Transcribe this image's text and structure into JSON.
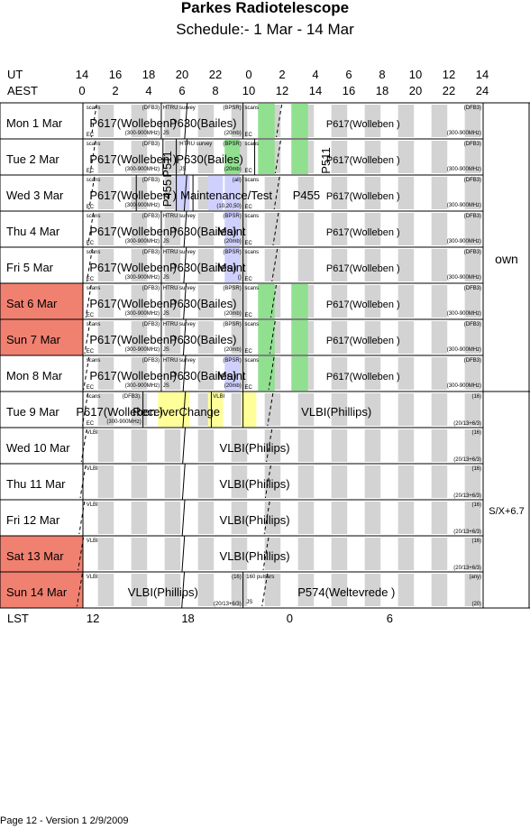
{
  "title": "Parkes Radiotelescope",
  "subtitle": "Schedule:- 1  Mar - 14 Mar",
  "axis": {
    "ut_label": "UT",
    "aest_label": "AEST",
    "lst_label": "LST",
    "ut_ticks": [
      "14",
      "16",
      "18",
      "20",
      "22",
      "0",
      "2",
      "4",
      "6",
      "8",
      "10",
      "12",
      "14"
    ],
    "aest_ticks": [
      "0",
      "2",
      "4",
      "6",
      "8",
      "10",
      "12",
      "14",
      "16",
      "18",
      "20",
      "22",
      "24"
    ],
    "lst_ticks": [
      "12",
      "18",
      "0",
      "6"
    ]
  },
  "days": [
    {
      "label": "Mon   1 Mar",
      "weekend": false
    },
    {
      "label": "Tue   2 Mar",
      "weekend": false
    },
    {
      "label": "Wed   3 Mar",
      "weekend": false
    },
    {
      "label": "Thu   4 Mar",
      "weekend": false
    },
    {
      "label": "Fri    5 Mar",
      "weekend": false
    },
    {
      "label": "Sat   6 Mar",
      "weekend": true
    },
    {
      "label": "Sun   7 Mar",
      "weekend": true
    },
    {
      "label": "Mon   8 Mar",
      "weekend": false
    },
    {
      "label": "Tue   9 Mar",
      "weekend": false
    },
    {
      "label": "Wed  10 Mar",
      "weekend": false
    },
    {
      "label": "Thu   11 Mar",
      "weekend": false
    },
    {
      "label": "Fri    12 Mar",
      "weekend": false
    },
    {
      "label": "Sat   13 Mar",
      "weekend": true
    },
    {
      "label": "Sun   14 Mar",
      "weekend": true
    }
  ],
  "side_labels": [
    "own",
    "S/X+6.7"
  ],
  "colors": {
    "weekend": "#f08070",
    "grey": "#d3d3d3",
    "green": "#90e090",
    "lavender": "#d0d0ff",
    "yellow": "#ffff99"
  },
  "small": {
    "scans": "scans",
    "dfb3": "(DFB3)",
    "dfb3_dot": "(DFB3).",
    "ec": "EC",
    "mhz": "(300-900MHz)",
    "js": "JS",
    "htru": "HTRU survey",
    "bpsr": "(BPSR)",
    "twenty_mb": "(20mb)",
    "paren": "()",
    "all": "(all)",
    "p455_opts": "(10,20,50)",
    "vlbi": "VLBI",
    "sixteen": "(16)",
    "vlbi_cfg": "(20/13+6/3)",
    "pulsars": "160 pulsars",
    "any": "(any)",
    "twenty": "(20)"
  },
  "prog": {
    "p617": "P617(Wolleben )",
    "p630": "P630(Bailes)",
    "p511": "P511",
    "p455": "P455",
    "maint_test": "Maintenance/Test",
    "maint": "Maint",
    "receiver": "ReceiverChange",
    "vlbi_phillips": "VLBI(Phillips)",
    "p574": "P574(Weltevrede )"
  },
  "footer": "Page 12 - Version 1  2/9/2009"
}
